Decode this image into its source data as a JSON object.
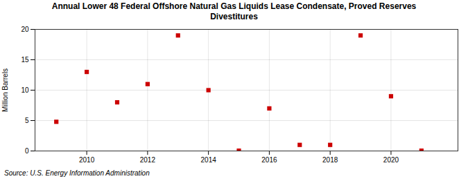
{
  "chart_data": {
    "type": "scatter",
    "title": "Annual Lower 48 Federal Offshore Natural Gas Liquids Lease Condensate, Proved Reserves\nDivestitures",
    "ylabel": "Million Barrels",
    "source": "Source: U.S. Energy Information Administration",
    "x": [
      2009,
      2010,
      2011,
      2012,
      2013,
      2014,
      2015,
      2016,
      2017,
      2018,
      2019,
      2020,
      2021
    ],
    "values": [
      4.8,
      13.0,
      8.0,
      11.0,
      19.0,
      10.0,
      0.05,
      7.0,
      1.0,
      1.0,
      19.0,
      9.0,
      0.05
    ],
    "color": "#cc0000",
    "marker": "square",
    "xlim": [
      2008.3,
      2022.2
    ],
    "ylim": [
      0,
      20
    ],
    "xticks": [
      2010,
      2012,
      2014,
      2016,
      2018,
      2020
    ],
    "yticks": [
      0,
      5,
      10,
      15,
      20
    ],
    "grid": true
  }
}
